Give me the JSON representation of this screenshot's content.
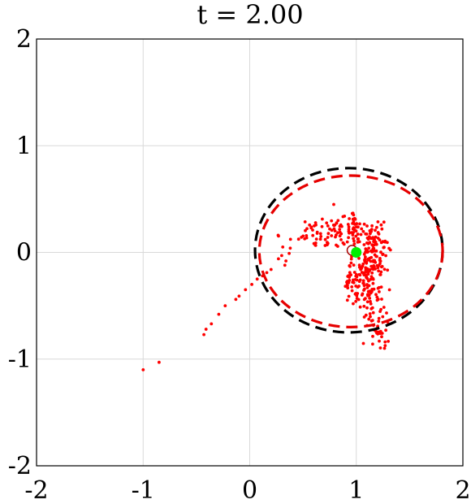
{
  "chart_data": {
    "type": "scatter",
    "title": "t = 2.00",
    "xlabel": "",
    "ylabel": "",
    "xlim": [
      -2,
      2
    ],
    "ylim": [
      -2,
      2
    ],
    "x_ticks": [
      "-2",
      "-1",
      "0",
      "1",
      "2"
    ],
    "y_ticks": [
      "2",
      "1",
      "0",
      "-1",
      "-2"
    ],
    "x_tick_values": [
      -2,
      -1,
      0,
      1,
      2
    ],
    "y_tick_values": [
      2,
      1,
      0,
      -1,
      -2
    ],
    "grid": true,
    "colors": {
      "particles": "#ff0000",
      "ellipse_true": "#000000",
      "ellipse_est": "#e60000",
      "true_center": "#00ee00",
      "est_center": "#aa0000"
    },
    "ellipses": [
      {
        "name_key": "ellipse_true",
        "cx": 0.93,
        "cy": 0.02,
        "rx": 0.88,
        "ry": 0.77,
        "style": "dashed"
      },
      {
        "name_key": "ellipse_est",
        "cx": 0.95,
        "cy": 0.01,
        "rx": 0.86,
        "ry": 0.71,
        "style": "dashed"
      }
    ],
    "true_center": [
      1.0,
      0.0
    ],
    "estimated_center": [
      0.96,
      0.02
    ],
    "outlier_points": [
      [
        -1.0,
        -1.1
      ],
      [
        -0.85,
        -1.03
      ],
      [
        -0.43,
        -0.77
      ],
      [
        -0.41,
        -0.72
      ],
      [
        -0.36,
        -0.67
      ],
      [
        -0.29,
        -0.58
      ],
      [
        -0.23,
        -0.5
      ],
      [
        -0.13,
        -0.44
      ],
      [
        -0.1,
        -0.41
      ],
      [
        -0.04,
        -0.35
      ],
      [
        0.02,
        -0.3
      ],
      [
        0.07,
        -0.25
      ],
      [
        0.12,
        -0.22
      ],
      [
        0.16,
        -0.19
      ],
      [
        0.2,
        -0.16
      ],
      [
        0.27,
        -0.06
      ],
      [
        0.3,
        -0.03
      ],
      [
        0.34,
        -0.08
      ],
      [
        0.37,
        -0.01
      ],
      [
        0.31,
        0.05
      ],
      [
        0.38,
        0.04
      ],
      [
        0.33,
        -0.12
      ]
    ],
    "arc_cluster": {
      "center": [
        0.95,
        0.0
      ],
      "mean_radius": 0.24,
      "angle_start_deg": 160,
      "angle_end_deg": -105,
      "count": 300,
      "spread": 0.07
    },
    "tail_cluster": {
      "x_range": [
        0.95,
        1.3
      ],
      "y_range": [
        -0.9,
        -0.05
      ],
      "count": 110
    }
  }
}
